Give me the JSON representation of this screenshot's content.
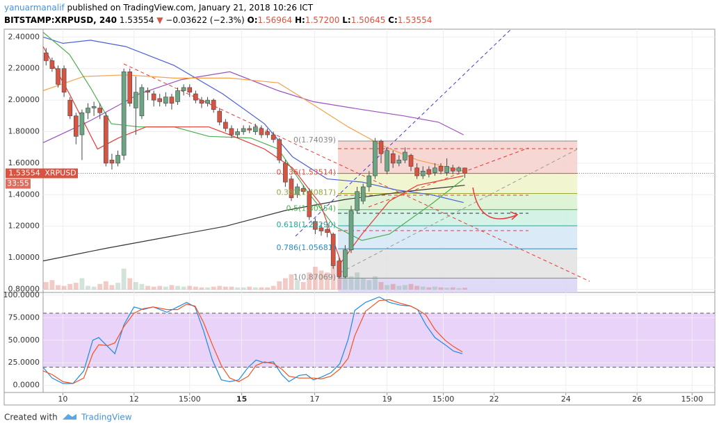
{
  "header": {
    "author": "yanuarmanalif",
    "published": "published on TradingView.com, January 21, 2018 10:26 ICT",
    "symbol": "BITSTAMP:XRPUSD, 240",
    "last": "1.53554",
    "arrow": "▼",
    "change": "−0.03622 (−2.3%)",
    "o_label": "O:",
    "o": "1.56964",
    "h_label": "H:",
    "h": "1.57200",
    "l_label": "L:",
    "l": "1.50645",
    "c_label": "C:",
    "c": "1.53554",
    "ticker": "XRPUSD",
    "countdown": "33:55"
  },
  "footer": {
    "created": "Created with",
    "brand": "TradingView"
  },
  "chart_data": [
    {
      "type": "candlestick",
      "up_color": "#6ba583",
      "down_color": "#d75442",
      "xlim": [
        -0.5,
        111.8
      ],
      "ylim": [
        0.78,
        2.45
      ],
      "yticks": [
        {
          "value": 0.8,
          "label": "0.80000"
        },
        {
          "value": 1.0,
          "label": "1.00000"
        },
        {
          "value": 1.2,
          "label": "1.20000"
        },
        {
          "value": 1.4,
          "label": "1.40000"
        },
        {
          "value": 1.6,
          "label": "1.60000"
        },
        {
          "value": 1.8,
          "label": "1.80000"
        },
        {
          "value": 2.0,
          "label": "2.00000"
        },
        {
          "value": 2.2,
          "label": "2.20000"
        },
        {
          "value": 2.4,
          "label": "2.40000"
        }
      ],
      "grid": true,
      "open": [
        2.3,
        2.25,
        2.2,
        2.2,
        2.0,
        1.9,
        1.78,
        1.92,
        1.95,
        1.95,
        1.9,
        1.62,
        1.6,
        1.65,
        2.18,
        1.95,
        1.9,
        2.06,
        2.04,
        2.01,
        1.98,
        2.02,
        1.99,
        2.06,
        2.08,
        2.04,
        2.0,
        1.98,
        2.0,
        1.93,
        1.86,
        1.82,
        1.78,
        1.8,
        1.82,
        1.8,
        1.82,
        1.8,
        1.78,
        1.75,
        1.6,
        1.5,
        1.4,
        1.44,
        1.42,
        1.23,
        1.19,
        1.18,
        1.15,
        0.98,
        0.88,
        1.05,
        1.3,
        1.36,
        1.45,
        1.52,
        1.74,
        1.55,
        1.66,
        1.6,
        1.62,
        1.65,
        1.57,
        1.52,
        1.56,
        1.54,
        1.58,
        1.54,
        1.57,
        1.55,
        1.56964
      ],
      "high": [
        2.33,
        2.27,
        2.22,
        2.22,
        2.02,
        1.92,
        1.94,
        1.98,
        1.99,
        1.98,
        1.92,
        1.66,
        1.68,
        2.2,
        2.2,
        2.15,
        2.1,
        2.08,
        2.06,
        2.04,
        2.05,
        2.04,
        2.08,
        2.1,
        2.1,
        2.06,
        2.02,
        2.02,
        2.01,
        1.95,
        1.88,
        1.84,
        1.82,
        1.84,
        1.84,
        1.85,
        1.84,
        1.82,
        1.8,
        1.76,
        1.62,
        1.52,
        1.47,
        1.46,
        1.44,
        1.25,
        1.22,
        1.2,
        1.16,
        1.0,
        1.08,
        1.33,
        1.45,
        1.47,
        1.55,
        1.76,
        1.75,
        1.7,
        1.68,
        1.65,
        1.7,
        1.66,
        1.6,
        1.58,
        1.58,
        1.6,
        1.6,
        1.63,
        1.59,
        1.58,
        1.572
      ],
      "low": [
        2.22,
        2.18,
        2.08,
        2.02,
        1.88,
        1.72,
        1.62,
        1.88,
        1.9,
        1.88,
        1.58,
        1.56,
        1.58,
        1.62,
        1.96,
        1.78,
        1.88,
        2.0,
        1.96,
        1.96,
        1.96,
        1.94,
        1.97,
        2.03,
        2.02,
        1.98,
        1.95,
        1.96,
        1.92,
        1.84,
        1.8,
        1.76,
        1.76,
        1.78,
        1.79,
        1.78,
        1.76,
        1.76,
        1.73,
        1.6,
        1.45,
        1.36,
        1.38,
        1.4,
        1.24,
        1.15,
        1.14,
        1.13,
        0.93,
        0.87,
        0.87,
        1.03,
        1.28,
        1.34,
        1.42,
        1.5,
        1.6,
        1.53,
        1.57,
        1.58,
        1.6,
        1.55,
        1.5,
        1.5,
        1.51,
        1.52,
        1.53,
        1.52,
        1.53,
        1.53,
        1.50645
      ],
      "close": [
        2.25,
        2.2,
        2.1,
        2.05,
        1.9,
        1.77,
        1.92,
        1.95,
        1.96,
        1.92,
        1.6,
        1.6,
        1.65,
        2.18,
        1.98,
        2.05,
        2.08,
        2.05,
        2.0,
        1.99,
        2.02,
        1.98,
        2.06,
        2.08,
        2.05,
        2.0,
        1.98,
        2.0,
        1.94,
        1.86,
        1.82,
        1.78,
        1.8,
        1.82,
        1.81,
        1.83,
        1.78,
        1.78,
        1.75,
        1.62,
        1.48,
        1.38,
        1.45,
        1.42,
        1.26,
        1.18,
        1.17,
        1.16,
        0.95,
        0.88,
        1.05,
        1.3,
        1.42,
        1.45,
        1.52,
        1.74,
        1.66,
        1.68,
        1.6,
        1.62,
        1.67,
        1.58,
        1.52,
        1.55,
        1.53,
        1.57,
        1.55,
        1.58,
        1.55,
        1.57,
        1.53554
      ],
      "volume": [
        20,
        25,
        12,
        10,
        15,
        18,
        30,
        10,
        8,
        15,
        22,
        12,
        18,
        55,
        30,
        20,
        15,
        10,
        8,
        10,
        8,
        12,
        10,
        8,
        10,
        8,
        6,
        6,
        8,
        10,
        8,
        8,
        6,
        6,
        8,
        6,
        6,
        6,
        10,
        22,
        30,
        40,
        25,
        20,
        45,
        60,
        50,
        45,
        70,
        65,
        40,
        35,
        45,
        30,
        25,
        35,
        20,
        12,
        15,
        10,
        12,
        15,
        10,
        8,
        6,
        8,
        6,
        5,
        6,
        4,
        5
      ],
      "lines": [
        {
          "color": "#333333",
          "x": [
            -0.5,
            10,
            20,
            30,
            40,
            50,
            60,
            70
          ],
          "values": [
            0.98,
            1.06,
            1.13,
            1.2,
            1.3,
            1.37,
            1.42,
            1.46
          ]
        },
        {
          "color": "#4a5fd8",
          "x": [
            -0.5,
            2.8,
            7.4,
            13.3,
            21.4,
            29.5,
            36.5,
            41.2,
            47.0,
            52.8,
            58.6,
            64.4,
            69.8
          ],
          "values": [
            2.4,
            2.36,
            2.38,
            2.34,
            2.22,
            2.04,
            1.85,
            1.64,
            1.5,
            1.48,
            1.43,
            1.4,
            1.35
          ]
        },
        {
          "color": "#9c4fc0",
          "x": [
            -0.5,
            7.4,
            15.6,
            22.6,
            30.7,
            38.8,
            44.7,
            52.8,
            59.8,
            65.6,
            69.8
          ],
          "values": [
            1.73,
            1.87,
            2.04,
            2.13,
            2.18,
            2.06,
            1.99,
            1.94,
            1.9,
            1.86,
            1.78
          ]
        },
        {
          "color": "#f5a04a",
          "x": [
            -0.5,
            6.3,
            13.3,
            21.4,
            30.7,
            38.8,
            44.7,
            50.5,
            56.3,
            62.1,
            69.8
          ],
          "values": [
            2.06,
            2.15,
            2.16,
            2.14,
            2.14,
            2.11,
            1.97,
            1.83,
            1.71,
            1.62,
            1.55
          ]
        },
        {
          "color": "#4caf50",
          "x": [
            -0.5,
            3.9,
            7.4,
            10.9,
            15.6,
            21.4,
            27.2,
            34.2,
            38.8,
            43.5,
            48.2,
            52.8,
            57.4,
            64.4,
            69.8
          ],
          "values": [
            2.43,
            2.29,
            2.08,
            1.85,
            1.83,
            1.83,
            1.77,
            1.76,
            1.69,
            1.43,
            1.2,
            1.11,
            1.15,
            1.34,
            1.5
          ]
        },
        {
          "color": "#e53935",
          "x": [
            -0.5,
            3.9,
            8.6,
            12.1,
            16.7,
            21.4,
            27.2,
            30.7,
            36.5,
            41.2,
            45.9,
            49.3,
            52.8,
            57.4,
            62.1,
            69.8
          ],
          "values": [
            2.34,
            2.04,
            1.69,
            1.76,
            1.83,
            1.83,
            1.83,
            1.78,
            1.69,
            1.57,
            1.34,
            0.97,
            1.15,
            1.36,
            1.46,
            1.52
          ]
        }
      ],
      "fib_levels": [
        {
          "label": "0(1.74039)",
          "value": 1.74039,
          "color": "#888888",
          "fill": "#f6d0cd"
        },
        {
          "label": "0.236(1.53514)",
          "value": 1.53514,
          "color": "#d75442",
          "fill": "#eef4c9"
        },
        {
          "label": "0.382(1.40817)",
          "value": 1.40817,
          "color": "#9aa83a",
          "fill": "#d9f1cf"
        },
        {
          "label": "0.5(1.30554)",
          "value": 1.30554,
          "color": "#4caf50",
          "fill": "#cdf0e0"
        },
        {
          "label": "0.618(1.20290)",
          "value": 1.2029,
          "color": "#26a69a",
          "fill": "#d3e7f6"
        },
        {
          "label": "0.786(1.05681)",
          "value": 1.05681,
          "color": "#2b8cc4",
          "fill": "#e2e2e2"
        },
        {
          "label": "1(0.87069)",
          "value": 0.87069,
          "color": "#888888",
          "fill": "#d9d4f3"
        }
      ]
    },
    {
      "type": "line",
      "xlim": [
        -0.5,
        111.8
      ],
      "ylim": [
        -8,
        103
      ],
      "band": [
        20,
        80
      ],
      "band_color": "#e5c8f8",
      "yticks": [
        {
          "value": 0,
          "label": "0.0000"
        },
        {
          "value": 25,
          "label": "25.0000"
        },
        {
          "value": 50,
          "label": "50.0000"
        },
        {
          "value": 75,
          "label": "75.0000"
        },
        {
          "value": 100,
          "label": "100.0000"
        }
      ],
      "xticks": [
        {
          "value": 2.8,
          "label": "10"
        },
        {
          "value": 14.7,
          "label": "12"
        },
        {
          "value": 24.0,
          "label": "15:00"
        },
        {
          "value": 32.7,
          "label": "15"
        },
        {
          "value": 44.9,
          "label": "17"
        },
        {
          "value": 57.0,
          "label": "19"
        },
        {
          "value": 66.4,
          "label": "15:00"
        },
        {
          "value": 74.9,
          "label": "22"
        },
        {
          "value": 86.9,
          "label": "24"
        },
        {
          "value": 98.8,
          "label": "26"
        },
        {
          "value": 108.0,
          "label": "15:00"
        }
      ],
      "x": [
        -0.5,
        1.0,
        2.8,
        4.5,
        6.3,
        7.8,
        8.8,
        10.3,
        11.5,
        13.0,
        14.7,
        16.2,
        17.9,
        20.2,
        22.0,
        23.5,
        24.9,
        26.3,
        27.8,
        29.3,
        30.7,
        32.2,
        33.8,
        35.1,
        36.5,
        38.0,
        39.4,
        40.6,
        42.3,
        43.5,
        44.7,
        46.0,
        47.6,
        49.1,
        50.5,
        51.6,
        53.4,
        55.7,
        57.4,
        59.2,
        60.9,
        62.1,
        63.5,
        65.0,
        66.7,
        68.1,
        69.6
      ],
      "series": [
        {
          "color": "#1e88e5",
          "values": [
            20,
            8,
            2,
            2,
            16,
            50,
            53,
            43,
            35,
            67,
            87,
            84,
            87,
            81,
            87,
            92,
            87,
            61,
            28,
            6,
            4,
            6,
            20,
            28,
            25,
            26,
            12,
            4,
            11,
            12,
            6,
            9,
            14,
            24,
            51,
            83,
            92,
            98,
            92,
            89,
            88,
            84,
            67,
            53,
            45,
            38,
            35
          ]
        },
        {
          "color": "#f4511e",
          "values": [
            16,
            12,
            4,
            2,
            8,
            35,
            45,
            44,
            47,
            65,
            80,
            85,
            87,
            84,
            84,
            90,
            88,
            70,
            45,
            22,
            8,
            4,
            10,
            22,
            26,
            24,
            18,
            10,
            8,
            8,
            8,
            7,
            10,
            18,
            30,
            55,
            82,
            94,
            95,
            91,
            88,
            84,
            78,
            62,
            50,
            43,
            37
          ]
        }
      ]
    }
  ]
}
